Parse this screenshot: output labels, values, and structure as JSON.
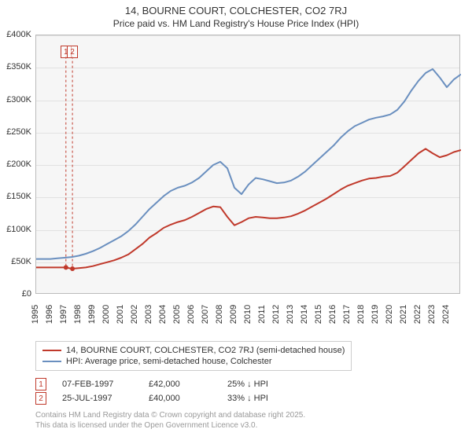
{
  "chart": {
    "type": "line",
    "title": "14, BOURNE COURT, COLCHESTER, CO2 7RJ",
    "subtitle": "Price paid vs. HM Land Registry's House Price Index (HPI)",
    "title_fontsize": 13,
    "subtitle_fontsize": 12,
    "background_color": "#f6f6f6",
    "grid_color": "#e2e2e2",
    "plot_border_color": "#bbbbbb",
    "xlim": [
      1995,
      2025
    ],
    "ylim": [
      0,
      400000
    ],
    "ytick_step": 50000,
    "ytick_labels": [
      "£0",
      "£50K",
      "£100K",
      "£150K",
      "£200K",
      "£250K",
      "£300K",
      "£350K",
      "£400K"
    ],
    "xtick_step": 1,
    "xtick_labels": [
      "1995",
      "1996",
      "1997",
      "1998",
      "1999",
      "2000",
      "2001",
      "2002",
      "2003",
      "2004",
      "2005",
      "2006",
      "2007",
      "2008",
      "2009",
      "2010",
      "2011",
      "2012",
      "2013",
      "2014",
      "2015",
      "2016",
      "2017",
      "2018",
      "2019",
      "2020",
      "2021",
      "2022",
      "2023",
      "2024"
    ],
    "series": [
      {
        "name": "14, BOURNE COURT, COLCHESTER, CO2 7RJ (semi-detached house)",
        "color": "#c0392b",
        "line_width": 2,
        "x": [
          1995,
          1995.5,
          1996,
          1996.5,
          1997,
          1997.1,
          1997.5,
          1998,
          1998.5,
          1999,
          1999.5,
          2000,
          2000.5,
          2001,
          2001.5,
          2002,
          2002.5,
          2003,
          2003.5,
          2004,
          2004.5,
          2005,
          2005.5,
          2006,
          2006.5,
          2007,
          2007.5,
          2008,
          2008.5,
          2009,
          2009.5,
          2010,
          2010.5,
          2011,
          2011.5,
          2012,
          2012.5,
          2013,
          2013.5,
          2014,
          2014.5,
          2015,
          2015.5,
          2016,
          2016.5,
          2017,
          2017.5,
          2018,
          2018.5,
          2019,
          2019.5,
          2020,
          2020.5,
          2021,
          2021.5,
          2022,
          2022.5,
          2023,
          2023.5,
          2024,
          2024.5,
          2025
        ],
        "y": [
          42000,
          42000,
          42000,
          42000,
          42000,
          42000,
          40000,
          41000,
          42000,
          44000,
          47000,
          50000,
          53000,
          57000,
          62000,
          70000,
          78000,
          88000,
          95000,
          103000,
          108000,
          112000,
          115000,
          120000,
          126000,
          132000,
          136000,
          135000,
          120000,
          107000,
          112000,
          118000,
          120000,
          119000,
          118000,
          118000,
          119000,
          121000,
          125000,
          130000,
          136000,
          142000,
          148000,
          155000,
          162000,
          168000,
          172000,
          176000,
          179000,
          180000,
          182000,
          183000,
          188000,
          198000,
          208000,
          218000,
          225000,
          218000,
          212000,
          215000,
          220000,
          223000
        ]
      },
      {
        "name": "HPI: Average price, semi-detached house, Colchester",
        "color": "#6a8fbf",
        "line_width": 2,
        "x": [
          1995,
          1995.5,
          1996,
          1996.5,
          1997,
          1997.5,
          1998,
          1998.5,
          1999,
          1999.5,
          2000,
          2000.5,
          2001,
          2001.5,
          2002,
          2002.5,
          2003,
          2003.5,
          2004,
          2004.5,
          2005,
          2005.5,
          2006,
          2006.5,
          2007,
          2007.5,
          2008,
          2008.5,
          2009,
          2009.5,
          2010,
          2010.5,
          2011,
          2011.5,
          2012,
          2012.5,
          2013,
          2013.5,
          2014,
          2014.5,
          2015,
          2015.5,
          2016,
          2016.5,
          2017,
          2017.5,
          2018,
          2018.5,
          2019,
          2019.5,
          2020,
          2020.5,
          2021,
          2021.5,
          2022,
          2022.5,
          2023,
          2023.5,
          2024,
          2024.5,
          2025
        ],
        "y": [
          55000,
          55000,
          55000,
          56000,
          57000,
          58000,
          60000,
          63000,
          67000,
          72000,
          78000,
          84000,
          90000,
          98000,
          108000,
          120000,
          132000,
          142000,
          152000,
          160000,
          165000,
          168000,
          173000,
          180000,
          190000,
          200000,
          205000,
          195000,
          165000,
          155000,
          170000,
          180000,
          178000,
          175000,
          172000,
          173000,
          176000,
          182000,
          190000,
          200000,
          210000,
          220000,
          230000,
          242000,
          252000,
          260000,
          265000,
          270000,
          273000,
          275000,
          278000,
          285000,
          298000,
          315000,
          330000,
          342000,
          348000,
          335000,
          320000,
          332000,
          340000
        ]
      }
    ],
    "sale_markers": [
      {
        "n": "1",
        "x": 1997.1,
        "y_top": 375000,
        "y_bot": 42000
      },
      {
        "n": "2",
        "x": 1997.56,
        "y_top": 375000,
        "y_bot": 40000
      }
    ]
  },
  "legend": {
    "items": [
      {
        "color": "#c0392b",
        "label": "14, BOURNE COURT, COLCHESTER, CO2 7RJ (semi-detached house)"
      },
      {
        "color": "#6a8fbf",
        "label": "HPI: Average price, semi-detached house, Colchester"
      }
    ]
  },
  "sales": [
    {
      "n": "1",
      "date": "07-FEB-1997",
      "price": "£42,000",
      "delta": "25% ↓ HPI"
    },
    {
      "n": "2",
      "date": "25-JUL-1997",
      "price": "£40,000",
      "delta": "33% ↓ HPI"
    }
  ],
  "credit": {
    "line1": "Contains HM Land Registry data © Crown copyright and database right 2025.",
    "line2": "This data is licensed under the Open Government Licence v3.0."
  }
}
